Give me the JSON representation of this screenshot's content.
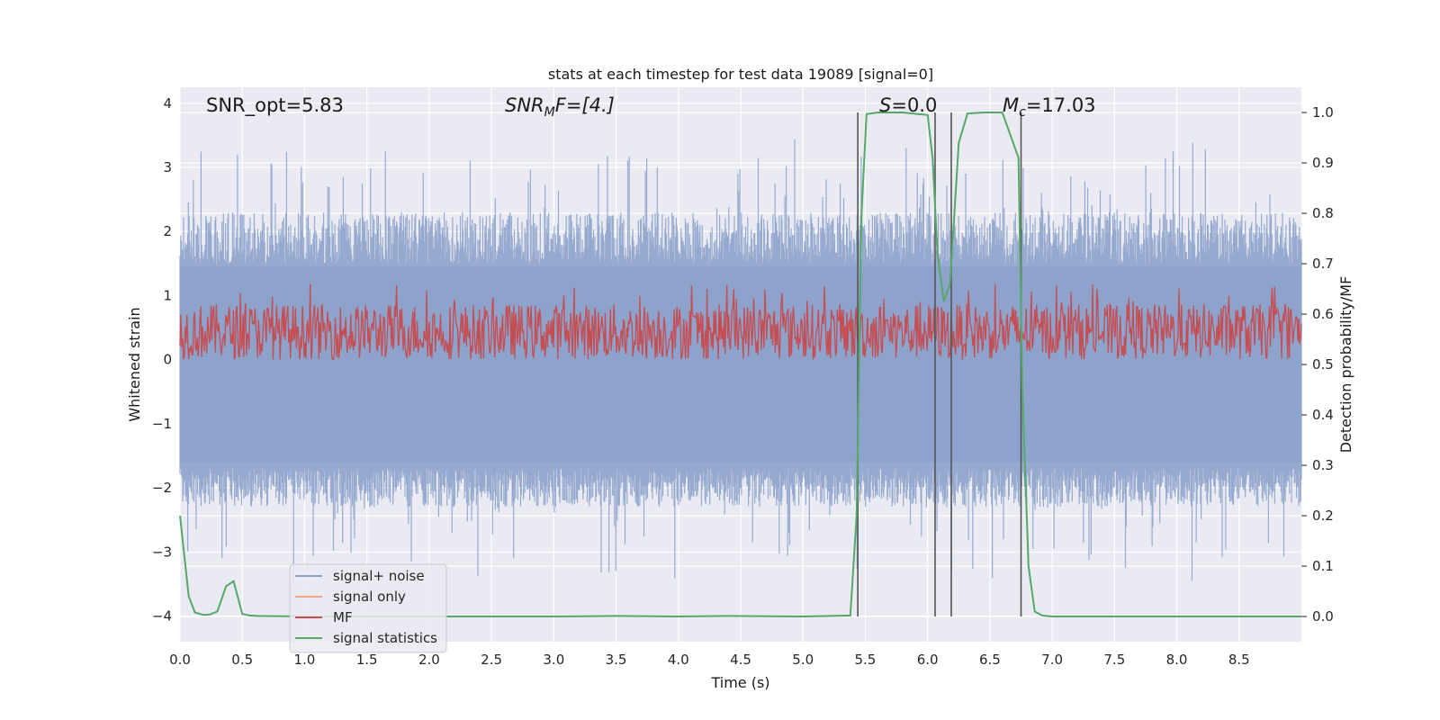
{
  "chart_data": {
    "type": "line",
    "title": "stats at each timestep for test data 19089 [signal=0]",
    "xlabel": "Time (s)",
    "ylabel_left": "Whitened strain",
    "ylabel_right": "Detection probability/MF",
    "xlim": [
      0.0,
      9.0
    ],
    "ylim_left": [
      -4.4,
      4.25
    ],
    "ylim_right": [
      -0.05,
      1.05
    ],
    "x_ticks": [
      "0.0",
      "0.5",
      "1.0",
      "1.5",
      "2.0",
      "2.5",
      "3.0",
      "3.5",
      "4.0",
      "4.5",
      "5.0",
      "5.5",
      "6.0",
      "6.5",
      "7.0",
      "7.5",
      "8.0",
      "8.5"
    ],
    "y_ticks_left": [
      "4",
      "3",
      "2",
      "1",
      "0",
      "−1",
      "−2",
      "−3",
      "−4"
    ],
    "y_ticks_right": [
      "1.0",
      "0.9",
      "0.8",
      "0.7",
      "0.6",
      "0.5",
      "0.4",
      "0.3",
      "0.2",
      "0.1",
      "0.0"
    ],
    "grid": true,
    "legend_position": "lower-left",
    "annotations": {
      "snr_opt": "SNR_opt=5.83",
      "snr_mf_a": "SNR",
      "snr_mf_sub": "M",
      "snr_mf_b": "F=[4.]",
      "s_a": "S",
      "s_b": "=0.0",
      "mc_a": "M",
      "mc_sub": "c",
      "mc_b": "=17.03"
    },
    "vertical_lines_x": [
      5.44,
      6.06,
      6.19,
      6.75
    ],
    "series": [
      {
        "name": "signal+ noise",
        "axis": "left",
        "color": "#8da2cb",
        "style": "dense noise, envelope approx",
        "envelope": {
          "typical_range": [
            -1.7,
            1.5
          ],
          "peak_max": 3.9,
          "peak_min": -4.0
        }
      },
      {
        "name": "signal only",
        "axis": "left",
        "color": "#f0a685",
        "values": []
      },
      {
        "name": "MF",
        "axis": "right",
        "color": "#c44e52",
        "style": "noise band",
        "band": [
          0.51,
          0.62
        ]
      },
      {
        "name": "signal statistics",
        "axis": "right",
        "color": "#55a868",
        "x": [
          0.0,
          0.07,
          0.12,
          0.19,
          0.24,
          0.3,
          0.37,
          0.43,
          0.5,
          0.56,
          0.62,
          1.0,
          2.0,
          3.0,
          3.5,
          4.0,
          4.4,
          5.0,
          5.38,
          5.43,
          5.47,
          5.51,
          5.6,
          5.8,
          6.0,
          6.04,
          6.08,
          6.13,
          6.18,
          6.25,
          6.32,
          6.45,
          6.6,
          6.73,
          6.76,
          6.81,
          6.86,
          6.92,
          7.0,
          8.0,
          9.0
        ],
        "values": [
          0.2,
          0.04,
          0.008,
          0.003,
          0.004,
          0.01,
          0.06,
          0.07,
          0.005,
          0.002,
          0.001,
          0.0,
          0.0,
          0.0,
          0.001,
          0.0,
          0.001,
          0.0,
          0.002,
          0.2,
          0.8,
          0.997,
          1.0,
          1.0,
          0.995,
          0.91,
          0.72,
          0.625,
          0.66,
          0.94,
          0.998,
          1.0,
          1.0,
          0.91,
          0.45,
          0.1,
          0.01,
          0.002,
          0.0,
          0.0,
          0.0
        ]
      }
    ]
  }
}
